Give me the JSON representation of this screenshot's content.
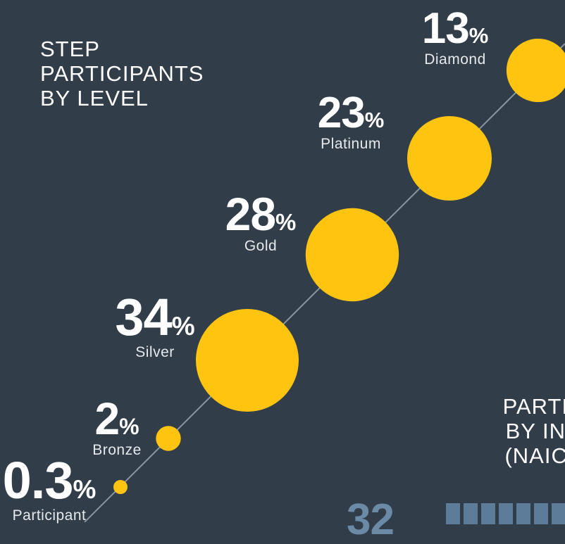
{
  "title_lines": [
    "STEP",
    "PARTICIPANTS",
    "BY LEVEL"
  ],
  "colors": {
    "background": "#313d48",
    "bubble": "#fec40f",
    "line": "#8a96a2",
    "text": "#ffffff"
  },
  "chart_data": {
    "type": "scatter",
    "title": "STEP PARTICIPANTS BY LEVEL",
    "unit": "%",
    "categories": [
      "Participant",
      "Bronze",
      "Silver",
      "Gold",
      "Platinum",
      "Diamond"
    ],
    "values": [
      0.3,
      2,
      34,
      28,
      23,
      13
    ],
    "value_labels": [
      "0.3",
      "2",
      "34",
      "28",
      "23",
      "13"
    ]
  },
  "industry": {
    "title_lines": [
      "PARTIC",
      "BY IND",
      "(NAICS"
    ],
    "pct_partial": "32",
    "squares": 7
  }
}
